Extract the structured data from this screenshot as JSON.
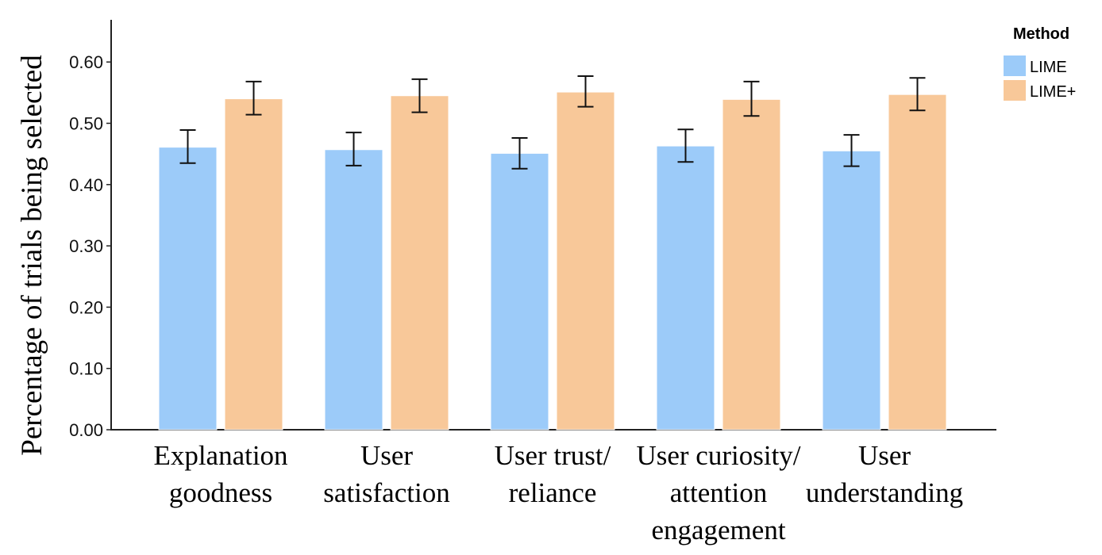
{
  "chart_data": {
    "type": "bar",
    "title": "",
    "xlabel": "",
    "ylabel": "Percentage of trials being selected",
    "ylim": [
      0,
      0.65
    ],
    "yticks": [
      "0.00",
      "0.10",
      "0.20",
      "0.30",
      "0.40",
      "0.50",
      "0.60"
    ],
    "categories": [
      [
        "Explanation",
        "goodness"
      ],
      [
        "User",
        "satisfaction"
      ],
      [
        "User trust/",
        "reliance"
      ],
      [
        "User curiosity/",
        "attention",
        "engagement"
      ],
      [
        "User",
        "understanding"
      ]
    ],
    "legend": {
      "title": "Method",
      "position": "top-right"
    },
    "series": [
      {
        "name": "LIME",
        "color": "#9ccbf9",
        "values": [
          0.461,
          0.457,
          0.451,
          0.463,
          0.455
        ],
        "error_low": [
          0.435,
          0.431,
          0.426,
          0.437,
          0.43
        ],
        "error_high": [
          0.489,
          0.485,
          0.476,
          0.49,
          0.481
        ]
      },
      {
        "name": "LIME+",
        "color": "#f8c899",
        "values": [
          0.54,
          0.545,
          0.551,
          0.539,
          0.547
        ],
        "error_low": [
          0.514,
          0.518,
          0.527,
          0.512,
          0.521
        ],
        "error_high": [
          0.568,
          0.572,
          0.577,
          0.568,
          0.574
        ]
      }
    ]
  }
}
